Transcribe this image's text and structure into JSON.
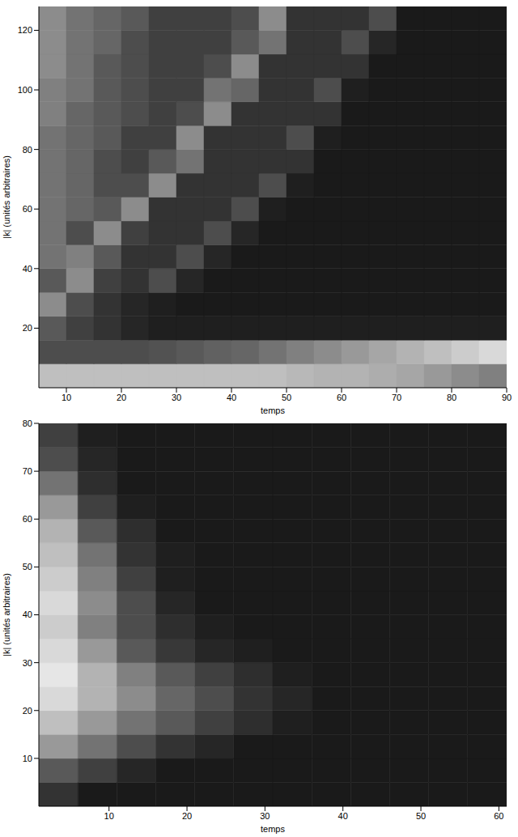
{
  "chart_data": [
    {
      "type": "heatmap",
      "x_label": "temps",
      "y_label": "|k| (unités arbitraires)",
      "xlim": [
        5,
        90
      ],
      "xticks": [
        10,
        20,
        30,
        40,
        50,
        60,
        70,
        80,
        90
      ],
      "ylim": [
        0,
        128
      ],
      "yticks": [
        20,
        40,
        60,
        80,
        100,
        120
      ],
      "heatmap": {
        "x_bins": [
          5,
          10,
          15,
          20,
          25,
          30,
          35,
          40,
          45,
          50,
          55,
          60,
          65,
          70,
          75,
          80,
          85,
          90
        ],
        "y_bins": [
          0,
          8,
          16,
          24,
          32,
          40,
          48,
          56,
          64,
          72,
          80,
          88,
          96,
          104,
          112,
          120,
          128
        ],
        "z": [
          [
            0.75,
            0.75,
            0.75,
            0.75,
            0.75,
            0.75,
            0.75,
            0.75,
            0.75,
            0.72,
            0.7,
            0.7,
            0.68,
            0.65,
            0.6,
            0.55,
            0.5
          ],
          [
            0.3,
            0.3,
            0.3,
            0.3,
            0.32,
            0.35,
            0.38,
            0.4,
            0.45,
            0.5,
            0.55,
            0.6,
            0.65,
            0.7,
            0.75,
            0.8,
            0.85
          ],
          [
            0.35,
            0.25,
            0.2,
            0.15,
            0.12,
            0.12,
            0.12,
            0.12,
            0.12,
            0.12,
            0.12,
            0.12,
            0.12,
            0.12,
            0.12,
            0.12,
            0.12
          ],
          [
            0.55,
            0.3,
            0.2,
            0.15,
            0.12,
            0.1,
            0.1,
            0.1,
            0.1,
            0.1,
            0.1,
            0.1,
            0.1,
            0.1,
            0.1,
            0.1,
            0.1
          ],
          [
            0.35,
            0.55,
            0.25,
            0.2,
            0.3,
            0.15,
            0.1,
            0.1,
            0.1,
            0.1,
            0.1,
            0.1,
            0.1,
            0.1,
            0.1,
            0.1,
            0.1
          ],
          [
            0.45,
            0.5,
            0.35,
            0.2,
            0.2,
            0.3,
            0.15,
            0.1,
            0.1,
            0.1,
            0.1,
            0.1,
            0.1,
            0.1,
            0.1,
            0.1,
            0.1
          ],
          [
            0.45,
            0.3,
            0.55,
            0.25,
            0.2,
            0.2,
            0.3,
            0.15,
            0.1,
            0.1,
            0.1,
            0.1,
            0.1,
            0.1,
            0.1,
            0.1,
            0.1
          ],
          [
            0.45,
            0.4,
            0.35,
            0.55,
            0.2,
            0.2,
            0.2,
            0.3,
            0.12,
            0.1,
            0.1,
            0.1,
            0.1,
            0.1,
            0.1,
            0.1,
            0.1
          ],
          [
            0.45,
            0.4,
            0.3,
            0.3,
            0.55,
            0.2,
            0.2,
            0.2,
            0.3,
            0.12,
            0.1,
            0.1,
            0.1,
            0.1,
            0.1,
            0.1,
            0.1
          ],
          [
            0.45,
            0.4,
            0.3,
            0.25,
            0.35,
            0.45,
            0.2,
            0.2,
            0.2,
            0.2,
            0.1,
            0.1,
            0.1,
            0.1,
            0.1,
            0.1,
            0.1
          ],
          [
            0.45,
            0.4,
            0.35,
            0.25,
            0.25,
            0.55,
            0.2,
            0.2,
            0.2,
            0.3,
            0.12,
            0.1,
            0.1,
            0.1,
            0.1,
            0.1,
            0.1
          ],
          [
            0.5,
            0.4,
            0.35,
            0.3,
            0.25,
            0.3,
            0.55,
            0.2,
            0.2,
            0.2,
            0.2,
            0.1,
            0.1,
            0.1,
            0.1,
            0.1,
            0.1
          ],
          [
            0.5,
            0.45,
            0.35,
            0.3,
            0.25,
            0.25,
            0.45,
            0.4,
            0.2,
            0.2,
            0.3,
            0.12,
            0.1,
            0.1,
            0.1,
            0.1,
            0.1
          ],
          [
            0.55,
            0.45,
            0.35,
            0.3,
            0.25,
            0.25,
            0.3,
            0.55,
            0.2,
            0.2,
            0.2,
            0.2,
            0.1,
            0.1,
            0.1,
            0.1,
            0.1
          ],
          [
            0.55,
            0.45,
            0.4,
            0.3,
            0.25,
            0.25,
            0.25,
            0.35,
            0.45,
            0.2,
            0.2,
            0.3,
            0.15,
            0.1,
            0.1,
            0.1,
            0.1
          ],
          [
            0.55,
            0.45,
            0.4,
            0.35,
            0.25,
            0.25,
            0.25,
            0.3,
            0.55,
            0.2,
            0.2,
            0.2,
            0.3,
            0.1,
            0.1,
            0.1,
            0.1
          ]
        ]
      }
    },
    {
      "type": "heatmap",
      "x_label": "temps",
      "y_label": "|k| (unités arbitraires)",
      "xlim": [
        1,
        61
      ],
      "xticks": [
        10,
        20,
        30,
        40,
        50,
        60
      ],
      "ylim": [
        0,
        80
      ],
      "yticks": [
        10,
        20,
        30,
        40,
        50,
        60,
        70,
        80
      ],
      "heatmap": {
        "x_bins": [
          1,
          6,
          11,
          16,
          21,
          26,
          31,
          36,
          41,
          46,
          51,
          56,
          61
        ],
        "y_bins": [
          0,
          5,
          10,
          15,
          20,
          25,
          30,
          35,
          40,
          45,
          50,
          55,
          60,
          65,
          70,
          75,
          80
        ],
        "z": [
          [
            0.2,
            0.1,
            0.1,
            0.1,
            0.1,
            0.1,
            0.1,
            0.1,
            0.1,
            0.1,
            0.1,
            0.1
          ],
          [
            0.35,
            0.25,
            0.15,
            0.1,
            0.1,
            0.1,
            0.1,
            0.1,
            0.1,
            0.1,
            0.1,
            0.1
          ],
          [
            0.6,
            0.45,
            0.3,
            0.2,
            0.15,
            0.1,
            0.1,
            0.1,
            0.1,
            0.1,
            0.1,
            0.1
          ],
          [
            0.75,
            0.6,
            0.45,
            0.35,
            0.25,
            0.18,
            0.12,
            0.1,
            0.1,
            0.1,
            0.1,
            0.1
          ],
          [
            0.85,
            0.7,
            0.55,
            0.4,
            0.3,
            0.2,
            0.15,
            0.1,
            0.1,
            0.1,
            0.1,
            0.1
          ],
          [
            0.9,
            0.7,
            0.5,
            0.35,
            0.25,
            0.18,
            0.12,
            0.1,
            0.1,
            0.1,
            0.1,
            0.1
          ],
          [
            0.85,
            0.6,
            0.35,
            0.22,
            0.15,
            0.12,
            0.1,
            0.1,
            0.1,
            0.1,
            0.1,
            0.1
          ],
          [
            0.8,
            0.5,
            0.3,
            0.18,
            0.12,
            0.1,
            0.1,
            0.1,
            0.1,
            0.1,
            0.1,
            0.1
          ],
          [
            0.85,
            0.55,
            0.3,
            0.15,
            0.1,
            0.1,
            0.1,
            0.1,
            0.1,
            0.1,
            0.1,
            0.1
          ],
          [
            0.8,
            0.5,
            0.25,
            0.12,
            0.1,
            0.1,
            0.1,
            0.1,
            0.1,
            0.1,
            0.1,
            0.1
          ],
          [
            0.75,
            0.45,
            0.2,
            0.12,
            0.1,
            0.1,
            0.1,
            0.1,
            0.1,
            0.1,
            0.1,
            0.1
          ],
          [
            0.7,
            0.35,
            0.18,
            0.1,
            0.1,
            0.1,
            0.1,
            0.1,
            0.1,
            0.1,
            0.1,
            0.1
          ],
          [
            0.6,
            0.25,
            0.12,
            0.1,
            0.1,
            0.1,
            0.1,
            0.1,
            0.1,
            0.1,
            0.1,
            0.1
          ],
          [
            0.45,
            0.18,
            0.1,
            0.1,
            0.1,
            0.1,
            0.1,
            0.1,
            0.1,
            0.1,
            0.1,
            0.1
          ],
          [
            0.3,
            0.15,
            0.1,
            0.1,
            0.1,
            0.1,
            0.1,
            0.1,
            0.1,
            0.1,
            0.1,
            0.1
          ],
          [
            0.25,
            0.12,
            0.1,
            0.1,
            0.1,
            0.1,
            0.1,
            0.1,
            0.1,
            0.1,
            0.1,
            0.1
          ]
        ]
      }
    }
  ]
}
